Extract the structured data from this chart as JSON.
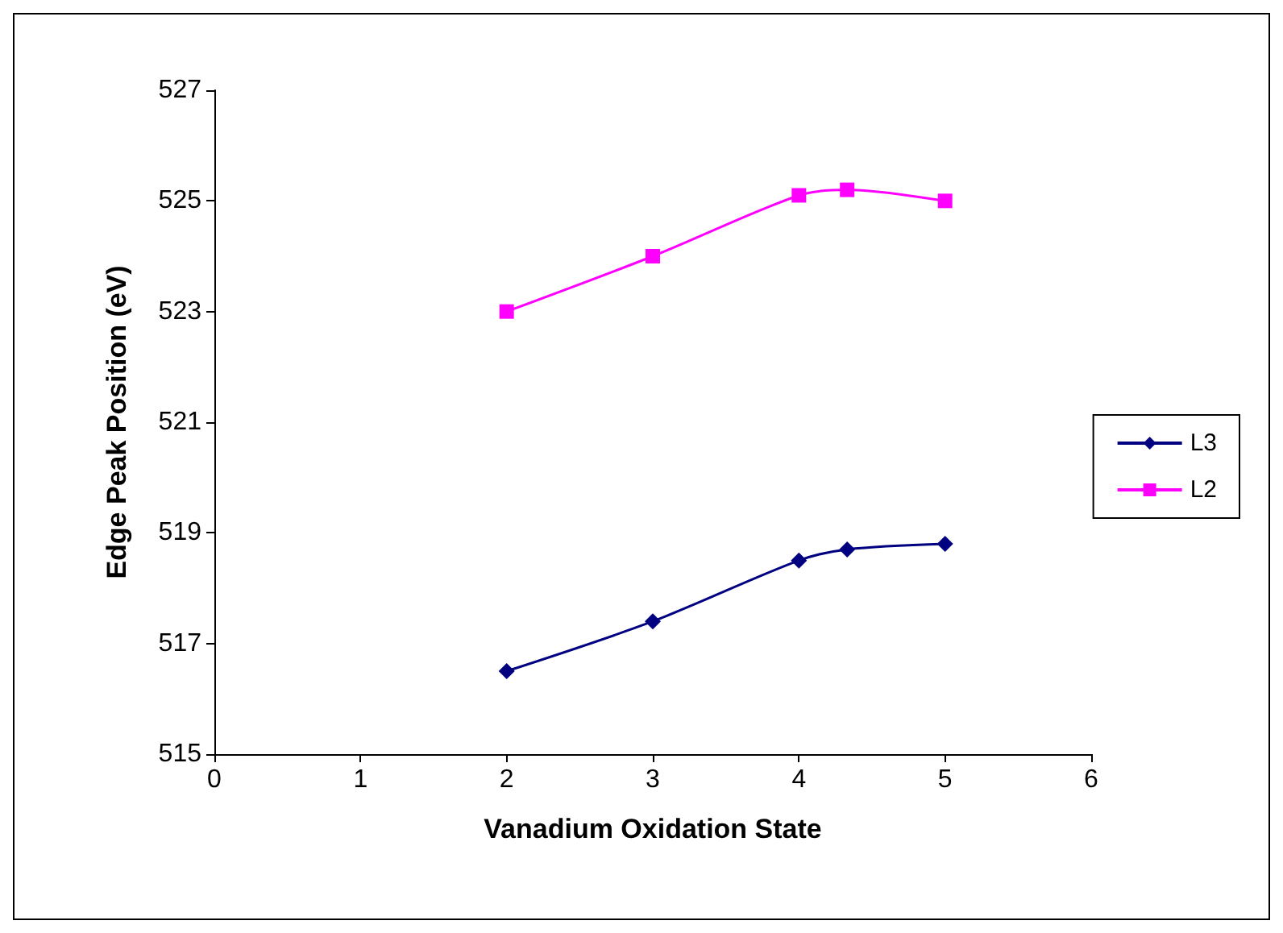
{
  "chart_data": {
    "type": "line",
    "xlabel": "Vanadium Oxidation State",
    "ylabel": "Edge Peak Position (eV)",
    "xlim": [
      0,
      6
    ],
    "xticks": [
      0,
      1,
      2,
      3,
      4,
      5,
      6
    ],
    "ylim": [
      515,
      527
    ],
    "yticks": [
      515,
      517,
      519,
      521,
      523,
      525,
      527
    ],
    "x": [
      2,
      3,
      4,
      4.33,
      5
    ],
    "series": [
      {
        "name": "L3",
        "color": "#000080",
        "marker": "diamond",
        "values": [
          516.5,
          517.4,
          518.5,
          518.7,
          518.8
        ]
      },
      {
        "name": "L2",
        "color": "#ff00ff",
        "marker": "square",
        "values": [
          523.0,
          524.0,
          525.1,
          525.2,
          525.0
        ]
      }
    ],
    "grid": false,
    "legend": "right"
  }
}
